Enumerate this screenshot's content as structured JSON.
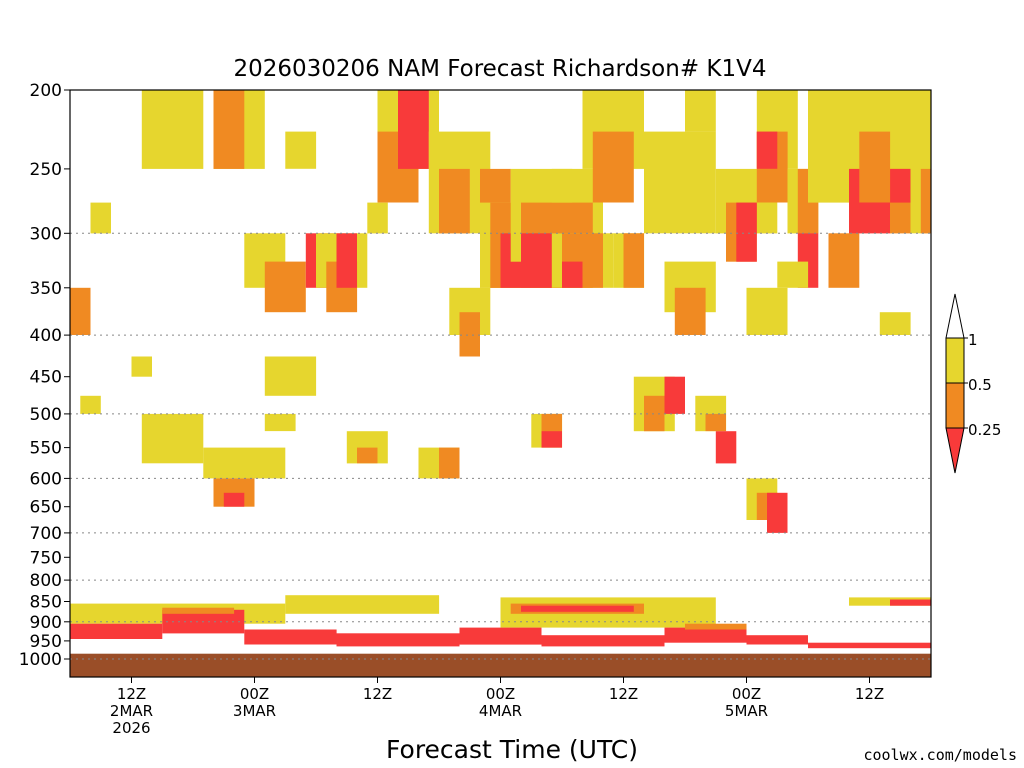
{
  "chart_data": {
    "type": "heatmap",
    "title": "2026030206 NAM Forecast Richardson# K1V4",
    "xlabel": "Forecast Time (UTC)",
    "ylabel": "",
    "watermark": "coolwx.com/models",
    "y_axis": {
      "scale": "log-pressure",
      "range_hpa": [
        200,
        1000
      ],
      "ticks": [
        200,
        250,
        300,
        350,
        400,
        450,
        500,
        550,
        600,
        650,
        700,
        750,
        800,
        850,
        900,
        950,
        1000
      ],
      "tick_labels": [
        "200",
        "250",
        "300",
        "350",
        "400",
        "450",
        "500",
        "550",
        "600",
        "650",
        "700",
        "750",
        "800",
        "850",
        "900",
        "950",
        "1000"
      ],
      "dotted_gridlines_hpa": [
        300,
        400,
        500,
        600,
        700,
        800,
        900,
        1000
      ]
    },
    "x_axis": {
      "range_hours_from_06z_2mar": [
        0,
        84
      ],
      "ticks": [
        {
          "hour": 6,
          "time": "12Z",
          "date": "2MAR",
          "year": "2026"
        },
        {
          "hour": 18,
          "time": "00Z",
          "date": "3MAR",
          "year": ""
        },
        {
          "hour": 30,
          "time": "12Z",
          "date": "",
          "year": ""
        },
        {
          "hour": 42,
          "time": "00Z",
          "date": "4MAR",
          "year": ""
        },
        {
          "hour": 54,
          "time": "12Z",
          "date": "",
          "year": ""
        },
        {
          "hour": 66,
          "time": "00Z",
          "date": "5MAR",
          "year": ""
        },
        {
          "hour": 78,
          "time": "12Z",
          "date": "",
          "year": ""
        }
      ]
    },
    "colorbar": {
      "levels": [
        "1",
        "0.5",
        "0.25"
      ],
      "bins": [
        {
          "range": "> 1",
          "color": "#ffffff"
        },
        {
          "range": "0.5 - 1",
          "color": "#e6d62e"
        },
        {
          "range": "0.25 - 0.5",
          "color": "#f08a22"
        },
        {
          "range": "< 0.25",
          "color": "#f83a3a"
        }
      ]
    },
    "colors": {
      "yellow": "#e6d62e",
      "orange": "#f08a22",
      "red": "#f83a3a",
      "ground": "#9a4e28"
    },
    "ground_level_hpa": 985,
    "cells": [
      [
        "y",
        7,
        0,
        6,
        2
      ],
      [
        "o",
        0,
        6,
        2,
        2
      ],
      [
        "y",
        1,
        11,
        2,
        1
      ],
      [
        "y",
        7,
        12,
        6,
        3
      ],
      [
        "y",
        14,
        0,
        5,
        2
      ],
      [
        "o",
        14,
        0,
        3,
        2
      ],
      [
        "y",
        2,
        3,
        2,
        1
      ],
      [
        "y",
        6,
        9,
        2,
        1
      ],
      [
        "y",
        17,
        4,
        4,
        2
      ],
      [
        "o",
        19,
        5,
        4,
        2
      ],
      [
        "r",
        23,
        4,
        3,
        2
      ],
      [
        "y",
        19,
        9,
        5,
        2
      ],
      [
        "y",
        24,
        4,
        5,
        2
      ],
      [
        "o",
        25,
        5,
        3,
        2
      ],
      [
        "r",
        26,
        4,
        2,
        2
      ],
      [
        "y",
        21,
        1,
        3,
        1
      ],
      [
        "y",
        30,
        0,
        6,
        2
      ],
      [
        "o",
        30,
        1,
        4,
        2
      ],
      [
        "r",
        32,
        0,
        3,
        2
      ],
      [
        "y",
        29,
        3,
        2,
        1
      ],
      [
        "y",
        35,
        1,
        6,
        3
      ],
      [
        "o",
        36,
        2,
        3,
        2
      ],
      [
        "y",
        37,
        6,
        4,
        2
      ],
      [
        "o",
        38,
        7,
        2,
        2
      ],
      [
        "y",
        40,
        3,
        8,
        3
      ],
      [
        "o",
        41,
        3,
        6,
        3
      ],
      [
        "r",
        42,
        4,
        3,
        2
      ],
      [
        "o",
        40,
        2,
        3,
        1
      ],
      [
        "y",
        43,
        2,
        9,
        3
      ],
      [
        "o",
        44,
        3,
        7,
        3
      ],
      [
        "r",
        44,
        4,
        4,
        2
      ],
      [
        "y",
        47,
        2,
        2,
        1
      ],
      [
        "y",
        47,
        4,
        6,
        2
      ],
      [
        "o",
        48,
        4,
        4,
        2
      ],
      [
        "r",
        48,
        5,
        2,
        1
      ],
      [
        "y",
        50,
        0,
        6,
        2
      ],
      [
        "o",
        51,
        1,
        4,
        2
      ],
      [
        "y",
        53,
        4,
        3,
        2
      ],
      [
        "o",
        54,
        4,
        2,
        2
      ],
      [
        "y",
        56,
        1,
        7,
        3
      ],
      [
        "y",
        58,
        5,
        5,
        2
      ],
      [
        "o",
        59,
        6,
        3,
        2
      ],
      [
        "y",
        60,
        0,
        3,
        1
      ],
      [
        "y",
        63,
        2,
        6,
        2
      ],
      [
        "o",
        64,
        3,
        3,
        2
      ],
      [
        "r",
        65,
        3,
        2,
        2
      ],
      [
        "y",
        67,
        0,
        4,
        2
      ],
      [
        "o",
        67,
        1,
        3,
        2
      ],
      [
        "r",
        67,
        1,
        2,
        1
      ],
      [
        "y",
        66,
        6,
        4,
        2
      ],
      [
        "y",
        70,
        2,
        3,
        2
      ],
      [
        "o",
        71,
        2,
        2,
        2
      ],
      [
        "r",
        71,
        4,
        2,
        2
      ],
      [
        "y",
        69,
        5,
        3,
        1
      ],
      [
        "y",
        72,
        0,
        12,
        3
      ],
      [
        "y",
        73,
        0,
        10,
        2
      ],
      [
        "o",
        74,
        4,
        3,
        2
      ],
      [
        "r",
        76,
        2,
        4,
        2
      ],
      [
        "y",
        79,
        7,
        3,
        1
      ],
      [
        "o",
        80,
        2,
        2,
        2
      ],
      [
        "r",
        80,
        2,
        2,
        1
      ],
      [
        "o",
        77,
        1,
        3,
        2
      ],
      [
        "y",
        82,
        0,
        2,
        4
      ],
      [
        "o",
        83,
        2,
        1,
        2
      ],
      [
        "y",
        13,
        14,
        8,
        2
      ],
      [
        "o",
        14,
        16,
        4,
        2
      ],
      [
        "r",
        15,
        17,
        2,
        1
      ],
      [
        "y",
        19,
        12,
        3,
        1
      ],
      [
        "y",
        27,
        13,
        4,
        2
      ],
      [
        "o",
        28,
        14,
        2,
        1
      ],
      [
        "y",
        34,
        14,
        4,
        2
      ],
      [
        "o",
        36,
        14,
        2,
        2
      ],
      [
        "y",
        45,
        12,
        3,
        2
      ],
      [
        "o",
        46,
        12,
        2,
        2
      ],
      [
        "r",
        46,
        13,
        2,
        1
      ],
      [
        "y",
        55,
        10,
        4,
        3
      ],
      [
        "o",
        56,
        11,
        2,
        2
      ],
      [
        "r",
        58,
        10,
        2,
        2
      ],
      [
        "y",
        61,
        11,
        3,
        2
      ],
      [
        "o",
        62,
        12,
        2,
        1
      ],
      [
        "r",
        63,
        13,
        2,
        2
      ],
      [
        "y",
        66,
        16,
        3,
        3
      ],
      [
        "o",
        67,
        17,
        2,
        2
      ],
      [
        "r",
        68,
        17,
        2,
        3
      ]
    ],
    "bands": [
      {
        "color": "y",
        "x0": 0,
        "x1": 21,
        "p_top": 855,
        "p_bottom": 905
      },
      {
        "color": "y",
        "x0": 21,
        "x1": 36,
        "p_top": 835,
        "p_bottom": 880
      },
      {
        "color": "y",
        "x0": 42,
        "x1": 63,
        "p_top": 840,
        "p_bottom": 915
      },
      {
        "color": "o",
        "x0": 43,
        "x1": 56,
        "p_top": 855,
        "p_bottom": 880
      },
      {
        "color": "r",
        "x0": 44,
        "x1": 55,
        "p_top": 860,
        "p_bottom": 875
      },
      {
        "color": "r",
        "x0": 0,
        "x1": 9,
        "p_top": 905,
        "p_bottom": 945
      },
      {
        "color": "r",
        "x0": 9,
        "x1": 17,
        "p_top": 870,
        "p_bottom": 930
      },
      {
        "color": "o",
        "x0": 9,
        "x1": 16,
        "p_top": 865,
        "p_bottom": 880
      },
      {
        "color": "r",
        "x0": 17,
        "x1": 26,
        "p_top": 920,
        "p_bottom": 960
      },
      {
        "color": "r",
        "x0": 26,
        "x1": 38,
        "p_top": 930,
        "p_bottom": 965
      },
      {
        "color": "r",
        "x0": 38,
        "x1": 46,
        "p_top": 915,
        "p_bottom": 960
      },
      {
        "color": "r",
        "x0": 46,
        "x1": 58,
        "p_top": 935,
        "p_bottom": 965
      },
      {
        "color": "r",
        "x0": 58,
        "x1": 66,
        "p_top": 915,
        "p_bottom": 955
      },
      {
        "color": "o",
        "x0": 60,
        "x1": 66,
        "p_top": 905,
        "p_bottom": 920
      },
      {
        "color": "r",
        "x0": 66,
        "x1": 72,
        "p_top": 935,
        "p_bottom": 960
      },
      {
        "color": "r",
        "x0": 72,
        "x1": 84,
        "p_top": 955,
        "p_bottom": 970
      },
      {
        "color": "y",
        "x0": 76,
        "x1": 84,
        "p_top": 840,
        "p_bottom": 860
      },
      {
        "color": "r",
        "x0": 80,
        "x1": 84,
        "p_top": 845,
        "p_bottom": 860
      }
    ]
  }
}
